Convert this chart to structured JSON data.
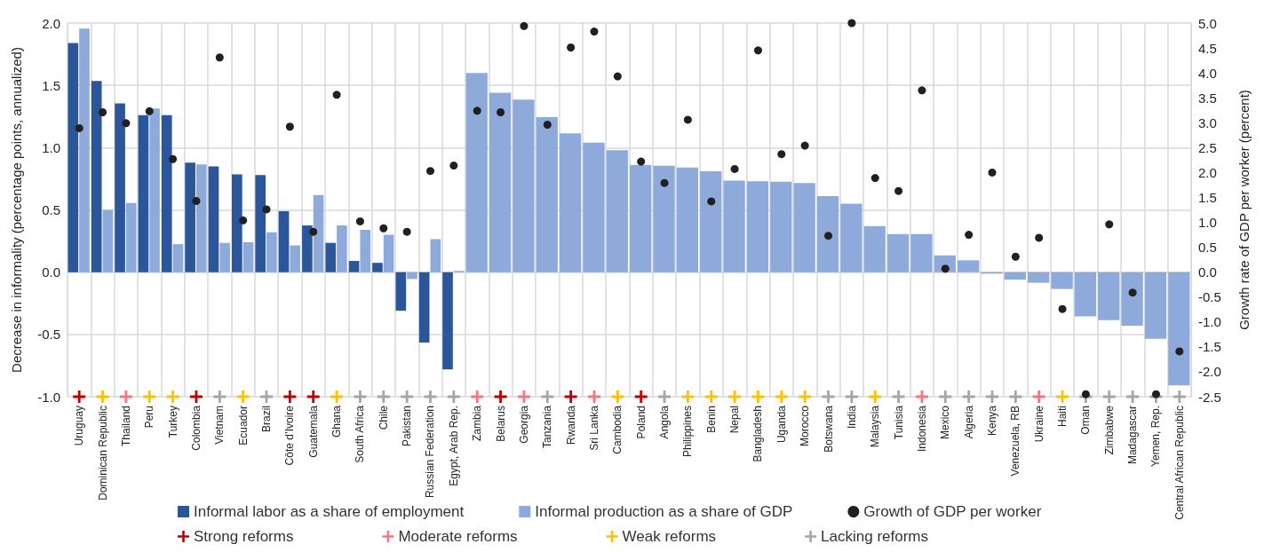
{
  "chart_data": {
    "type": "bar",
    "ylabel": "Decrease in informality (percentage points, annualized)",
    "y2label": "Growth rate of GDP per worker (percent)",
    "categories": [
      "Uruguay",
      "Dominican Republic",
      "Thailand",
      "Peru",
      "Turkey",
      "Colombia",
      "Vietnam",
      "Ecuador",
      "Brazil",
      "Côte d’Ivoire",
      "Guatemala",
      "Ghana",
      "South Africa",
      "Chile",
      "Pakistan",
      "Russian Federation",
      "Egypt, Arab Rep.",
      "Zambia",
      "Belarus",
      "Georgia",
      "Tanzania",
      "Rwanda",
      "Sri Lanka",
      "Cambodia",
      "Poland",
      "Angola",
      "Philippines",
      "Benin",
      "Nepal",
      "Bangladesh",
      "Uganda",
      "Morocco",
      "Botswana",
      "India",
      "Malaysia",
      "Tunisia",
      "Indonesia",
      "Mexico",
      "Algeria",
      "Kenya",
      "Venezuela, RB",
      "Ukraine",
      "Haiti",
      "Oman",
      "Zimbabwe",
      "Madagascar",
      "Yemen, Rep.",
      "Central African Republic"
    ],
    "series": [
      {
        "name": "Informal labor as a share of employment",
        "color": "#2b579a",
        "values": [
          1.84,
          1.535,
          1.355,
          1.26,
          1.26,
          0.88,
          0.85,
          0.785,
          0.78,
          0.49,
          0.375,
          0.235,
          0.09,
          0.075,
          -0.31,
          -0.565,
          -0.78,
          null,
          null,
          null,
          null,
          null,
          null,
          null,
          null,
          null,
          null,
          null,
          null,
          null,
          null,
          null,
          null,
          null,
          null,
          null,
          null,
          null,
          null,
          null,
          null,
          null,
          null,
          null,
          null,
          null,
          null,
          null
        ]
      },
      {
        "name": "Informal production as a share of GDP",
        "color": "#8eaadb",
        "values": [
          1.955,
          0.5,
          0.555,
          1.315,
          0.225,
          0.865,
          0.235,
          0.24,
          0.32,
          0.215,
          0.62,
          0.375,
          0.34,
          0.3,
          -0.055,
          0.265,
          0.01,
          1.6,
          1.44,
          1.385,
          1.245,
          1.115,
          1.04,
          0.98,
          0.86,
          0.855,
          0.84,
          0.81,
          0.735,
          0.73,
          0.727,
          0.715,
          0.61,
          0.55,
          0.37,
          0.305,
          0.305,
          0.135,
          0.095,
          -0.012,
          -0.06,
          -0.085,
          -0.135,
          -0.355,
          -0.385,
          -0.43,
          -0.535,
          -0.91
        ]
      },
      {
        "name": "Growth of GDP per worker",
        "type": "scatter",
        "axis": "y2",
        "marker": "circle",
        "color": "#231f20",
        "values": [
          2.89,
          3.21,
          2.99,
          3.23,
          2.27,
          1.43,
          4.31,
          1.04,
          1.26,
          2.92,
          0.81,
          3.56,
          1.02,
          0.88,
          0.81,
          2.03,
          2.14,
          3.24,
          3.21,
          4.94,
          2.96,
          4.51,
          4.83,
          3.93,
          2.22,
          1.79,
          3.06,
          1.42,
          2.07,
          4.45,
          2.37,
          2.54,
          0.73,
          5.0,
          1.89,
          1.63,
          3.65,
          0.07,
          0.75,
          2.0,
          0.31,
          0.69,
          -0.74,
          -2.45,
          0.96,
          -0.41,
          -2.45,
          -1.59
        ]
      },
      {
        "name": "Strong reforms",
        "type": "scatter",
        "marker": "cross",
        "color": "#c00000",
        "x": [
          "Uruguay",
          "Colombia",
          "Côte d’Ivoire",
          "Guatemala",
          "Belarus",
          "Rwanda",
          "Poland"
        ],
        "values": [
          -1,
          -1,
          -1,
          -1,
          -1,
          -1,
          -1
        ]
      },
      {
        "name": "Moderate reforms",
        "type": "scatter",
        "marker": "cross",
        "color": "#f4777f",
        "x": [
          "Thailand",
          "Zambia",
          "Georgia",
          "Sri Lanka",
          "Indonesia",
          "Ukraine"
        ],
        "values": [
          -1,
          -1,
          -1,
          -1,
          -1,
          -1
        ]
      },
      {
        "name": "Weak reforms",
        "type": "scatter",
        "marker": "cross",
        "color": "#ffc000",
        "x": [
          "Dominican Republic",
          "Peru",
          "Turkey",
          "Ecuador",
          "Ghana",
          "Cambodia",
          "Philippines",
          "Benin",
          "Nepal",
          "Bangladesh",
          "Uganda",
          "Morocco",
          "Malaysia",
          "Haiti"
        ],
        "values": [
          -1,
          -1,
          -1,
          -1,
          -1,
          -1,
          -1,
          -1,
          -1,
          -1,
          -1,
          -1,
          -1,
          -1
        ]
      },
      {
        "name": "Lacking reforms",
        "type": "scatter",
        "marker": "cross",
        "color": "#a6a6a6",
        "x": [
          "Vietnam",
          "Brazil",
          "South Africa",
          "Chile",
          "Pakistan",
          "Russian Federation",
          "Egypt, Arab Rep.",
          "Tanzania",
          "Angola",
          "Botswana",
          "India",
          "Tunisia",
          "Mexico",
          "Algeria",
          "Kenya",
          "Venezuela, RB",
          "Oman",
          "Zimbabwe",
          "Madagascar",
          "Yemen, Rep.",
          "Central African Republic"
        ],
        "values": [
          -1,
          -1,
          -1,
          -1,
          -1,
          -1,
          -1,
          -1,
          -1,
          -1,
          -1,
          -1,
          -1,
          -1,
          -1,
          -1,
          -1,
          -1,
          -1,
          -1,
          -1
        ]
      }
    ],
    "ylim": [
      -1,
      2
    ],
    "yticks": [
      {
        "value": -1,
        "label": "-1.0"
      },
      {
        "value": -0.5,
        "label": "-0.5"
      },
      {
        "value": 0,
        "label": "0.0"
      },
      {
        "value": 0.5,
        "label": "0.5"
      },
      {
        "value": 1,
        "label": "1.0"
      },
      {
        "value": 1.5,
        "label": "1.5"
      },
      {
        "value": 2,
        "label": "2.0"
      }
    ],
    "y2lim": [
      -2.5,
      5
    ],
    "y2ticks": [
      {
        "value": -2.5,
        "label": "-2.5"
      },
      {
        "value": -2,
        "label": "-2.0"
      },
      {
        "value": -1.5,
        "label": "-1.5"
      },
      {
        "value": -1,
        "label": "-1.0"
      },
      {
        "value": -0.5,
        "label": "-0.5"
      },
      {
        "value": 0,
        "label": "0.0"
      },
      {
        "value": 0.5,
        "label": "0.5"
      },
      {
        "value": 1,
        "label": "1.0"
      },
      {
        "value": 1.5,
        "label": "1.5"
      },
      {
        "value": 2,
        "label": "2.0"
      },
      {
        "value": 2.5,
        "label": "2.5"
      },
      {
        "value": 3,
        "label": "3.0"
      },
      {
        "value": 3.5,
        "label": "3.5"
      },
      {
        "value": 4,
        "label": "4.0"
      },
      {
        "value": 4.5,
        "label": "4.5"
      },
      {
        "value": 5,
        "label": "5.0"
      }
    ],
    "grid": true,
    "legend": "bottom"
  }
}
